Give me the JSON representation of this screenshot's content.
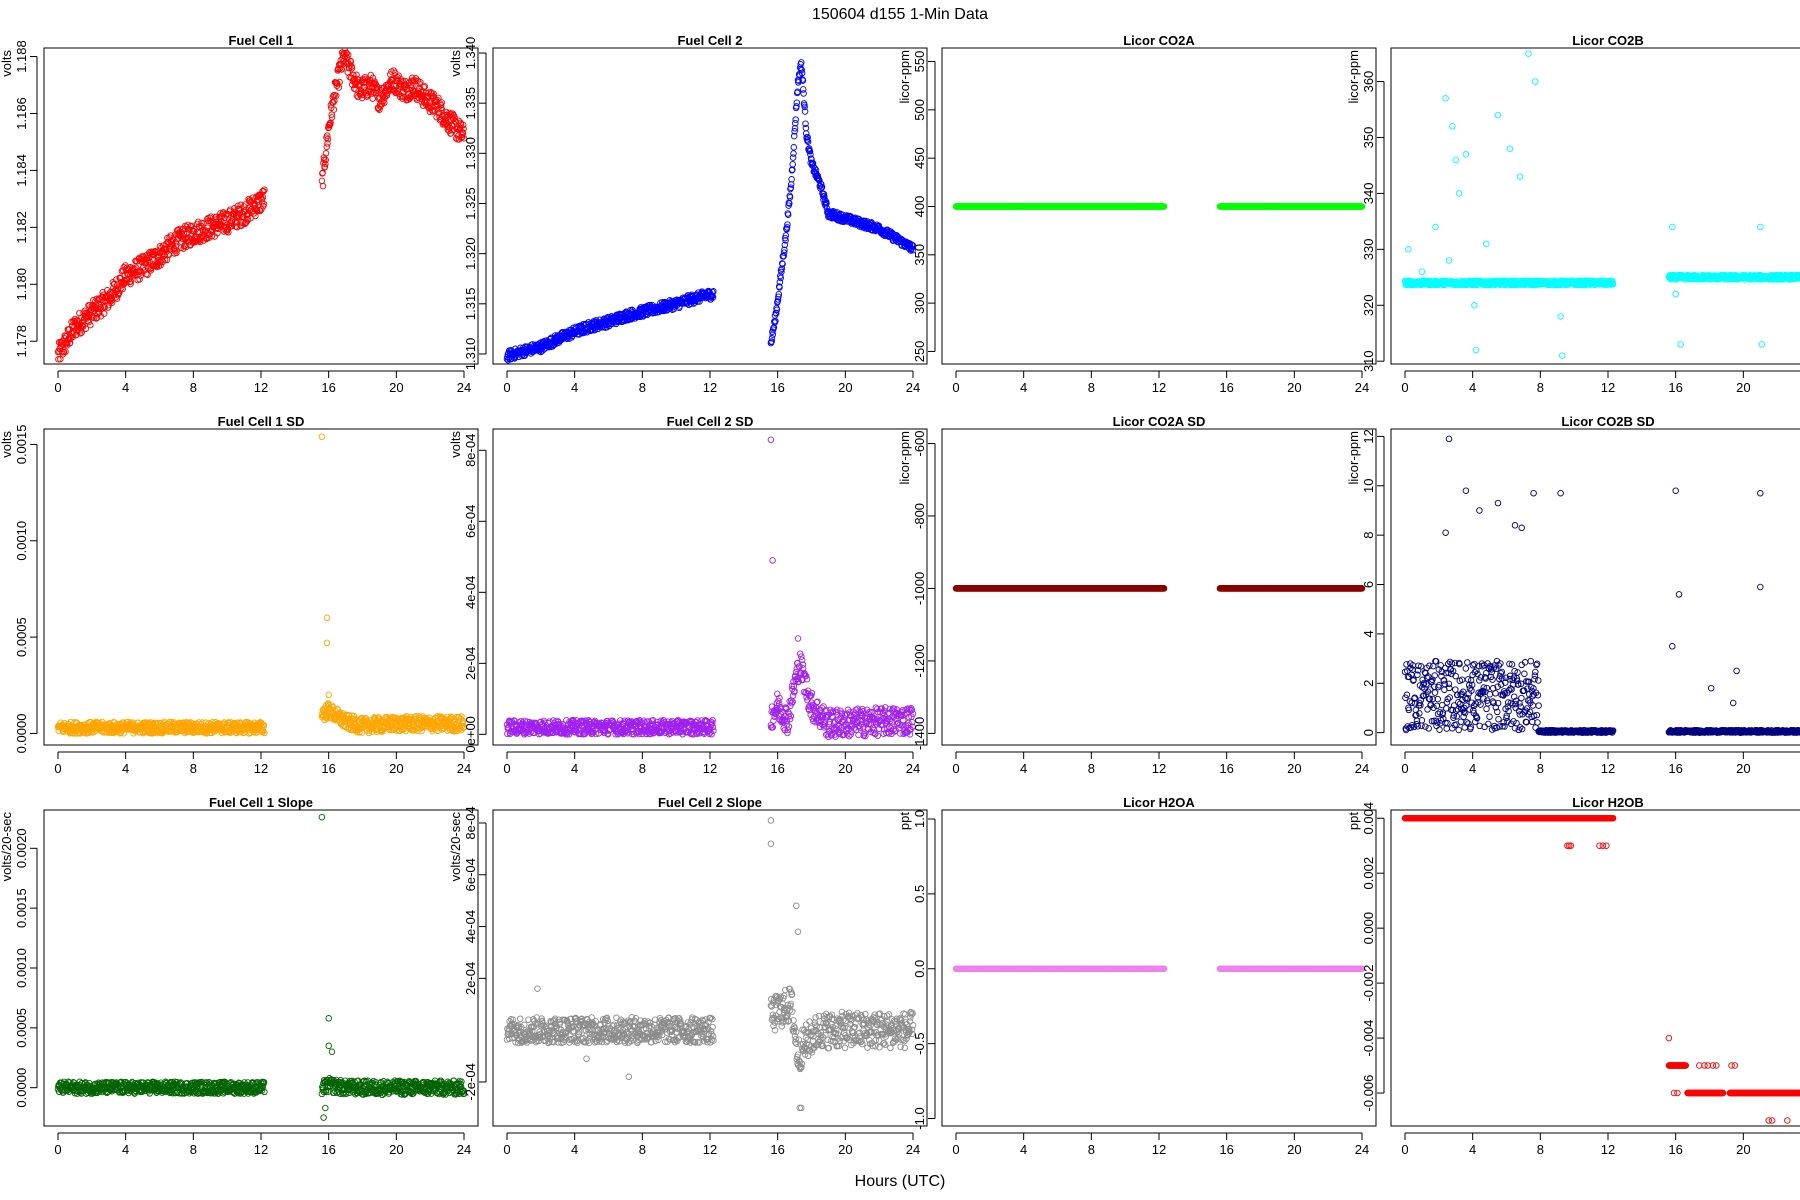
{
  "figure": {
    "title": "150604   d155   1-Min Data",
    "xlabel": "Hours (UTC)"
  },
  "chart_data": [
    {
      "type": "scatter",
      "title": "Fuel Cell 1",
      "ylabel": "volts",
      "color": "#ff0000",
      "xlim": [
        0,
        24
      ],
      "ylim": [
        1.1772,
        1.1883
      ],
      "yticks": [
        1.178,
        1.18,
        1.182,
        1.184,
        1.186,
        1.188
      ],
      "ytick_labels": [
        "1.178",
        "1.180",
        "1.182",
        "1.184",
        "1.186",
        "1.188"
      ],
      "series": [
        {
          "x": [
            0,
            1,
            2,
            3,
            4,
            5,
            6,
            7,
            8,
            9,
            10,
            11,
            12.2
          ],
          "y": [
            1.1775,
            1.1785,
            1.179,
            1.1795,
            1.1803,
            1.1806,
            1.181,
            1.1815,
            1.1818,
            1.182,
            1.1822,
            1.1825,
            1.183
          ],
          "spread": 0.0004
        },
        {
          "x": [
            15.6,
            15.8,
            16,
            16.3,
            16.6,
            16.9,
            17.3,
            17.8,
            18.5,
            19,
            19.8,
            20.5,
            21,
            21.8,
            22.5,
            23,
            23.5,
            24
          ],
          "y": [
            1.1835,
            1.1845,
            1.1855,
            1.1865,
            1.1873,
            1.188,
            1.1875,
            1.1868,
            1.187,
            1.1865,
            1.1872,
            1.1868,
            1.187,
            1.1865,
            1.1862,
            1.1858,
            1.1855,
            1.1852
          ],
          "spread": 0.0004
        }
      ]
    },
    {
      "type": "scatter",
      "title": "Fuel Cell 2",
      "ylabel": "volts",
      "color": "#0000ff",
      "xlim": [
        0,
        24
      ],
      "ylim": [
        1.309,
        1.3405
      ],
      "yticks": [
        1.31,
        1.315,
        1.32,
        1.325,
        1.33,
        1.335,
        1.34
      ],
      "ytick_labels": [
        "1.310",
        "1.315",
        "1.320",
        "1.325",
        "1.330",
        "1.335",
        "1.340"
      ],
      "series": [
        {
          "x": [
            0,
            1,
            2,
            3,
            4,
            5,
            6,
            7,
            8,
            9,
            10,
            11,
            12.2
          ],
          "y": [
            1.3098,
            1.3103,
            1.3107,
            1.3115,
            1.3122,
            1.3128,
            1.3132,
            1.3138,
            1.3142,
            1.3146,
            1.315,
            1.3155,
            1.316
          ],
          "spread": 0.0005
        },
        {
          "x": [
            15.6,
            15.9,
            16.2,
            16.5,
            16.8,
            17,
            17.2,
            17.4,
            17.7,
            18,
            18.5,
            19,
            20,
            21,
            22,
            23,
            24
          ],
          "y": [
            1.311,
            1.314,
            1.318,
            1.322,
            1.327,
            1.332,
            1.337,
            1.339,
            1.332,
            1.329,
            1.327,
            1.324,
            1.3235,
            1.323,
            1.3225,
            1.3215,
            1.3205
          ],
          "spread": 0.0004
        }
      ]
    },
    {
      "type": "scatter",
      "title": "Licor CO2A",
      "ylabel": "licor-ppm",
      "color": "#00ff00",
      "xlim": [
        0,
        24
      ],
      "ylim": [
        237,
        564
      ],
      "yticks": [
        250,
        300,
        350,
        400,
        450,
        500,
        550
      ],
      "ytick_labels": [
        "250",
        "300",
        "350",
        "400",
        "450",
        "500",
        "550"
      ],
      "series": [
        {
          "x": [
            0,
            12.3
          ],
          "y": [
            400,
            400
          ],
          "spread": 0
        },
        {
          "x": [
            15.6,
            24
          ],
          "y": [
            400,
            400
          ],
          "spread": 0
        }
      ]
    },
    {
      "type": "scatter",
      "title": "Licor CO2B",
      "ylabel": "licor-ppm",
      "color": "#00ffff",
      "xlim": [
        0,
        24
      ],
      "ylim": [
        309.5,
        366
      ],
      "yticks": [
        310,
        320,
        330,
        340,
        350,
        360
      ],
      "ytick_labels": [
        "310",
        "320",
        "330",
        "340",
        "350",
        "360"
      ],
      "series": [
        {
          "x": [
            0,
            8,
            12.3
          ],
          "y": [
            324,
            324,
            324
          ],
          "spread": 0.4
        },
        {
          "x": [
            15.6,
            24
          ],
          "y": [
            325,
            325
          ],
          "spread": 0.4
        }
      ],
      "scatter_points": {
        "x": [
          0.2,
          1,
          1.8,
          2.4,
          2.8,
          3.2,
          3.6,
          4.2,
          4.8,
          5.5,
          6.2,
          6.8,
          7.3,
          7.7,
          9.2,
          9.3,
          15.8,
          16,
          16.3,
          21,
          21.1,
          2.6,
          3,
          4.1
        ],
        "y": [
          330,
          326,
          334,
          357,
          352,
          340,
          347,
          312,
          331,
          354,
          348,
          343,
          365,
          360,
          318,
          311,
          334,
          322,
          313,
          334,
          313,
          328,
          346,
          320
        ],
        "spread": 0
      }
    },
    {
      "type": "scatter",
      "title": "Fuel Cell 1 SD",
      "ylabel": "volts",
      "color": "#ffa500",
      "xlim": [
        0,
        24
      ],
      "ylim": [
        -6e-05,
        0.00158
      ],
      "yticks": [
        0,
        0.0005,
        0.001,
        0.0015
      ],
      "ytick_labels": [
        "0.0000",
        "0.0005",
        "0.0010",
        "0.0015"
      ],
      "series": [
        {
          "x": [
            0,
            12.2
          ],
          "y": [
            3e-05,
            3e-05
          ],
          "spread": 3e-05
        },
        {
          "x": [
            15.6,
            16,
            17,
            18,
            20,
            24
          ],
          "y": [
            0.0001,
            0.00012,
            6e-05,
            4e-05,
            5e-05,
            5e-05
          ],
          "spread": 4e-05
        }
      ],
      "scatter_points": {
        "x": [
          15.6,
          15.9,
          15.9,
          16
        ],
        "y": [
          0.00154,
          0.0006,
          0.00047,
          0.0002
        ],
        "spread": 0
      }
    },
    {
      "type": "scatter",
      "title": "Fuel Cell 2 SD",
      "ylabel": "volts",
      "color": "#a020f0",
      "xlim": [
        0,
        24
      ],
      "ylim": [
        -3e-05,
        0.00086
      ],
      "yticks": [
        0,
        0.0002,
        0.0004,
        0.0006,
        0.0008
      ],
      "ytick_labels": [
        "0e+00",
        "2e-04",
        "4e-04",
        "6e-04",
        "8e-04"
      ],
      "series": [
        {
          "x": [
            0,
            12.2
          ],
          "y": [
            2e-05,
            2e-05
          ],
          "spread": 2e-05
        },
        {
          "x": [
            15.6,
            16,
            16.6,
            17,
            17.3,
            18,
            19,
            24
          ],
          "y": [
            5e-05,
            8e-05,
            4e-05,
            0.00014,
            0.0002,
            8e-05,
            3e-05,
            4e-05
          ],
          "spread": 4e-05
        }
      ],
      "scatter_points": {
        "x": [
          15.6,
          15.7,
          17.2
        ],
        "y": [
          0.00083,
          0.00049,
          0.00027
        ],
        "spread": 0
      }
    },
    {
      "type": "scatter",
      "title": "Licor CO2A SD",
      "ylabel": "licor-ppm",
      "color": "#8b0000",
      "xlim": [
        0,
        24
      ],
      "ylim": [
        -1432,
        -560
      ],
      "yticks": [
        -1400,
        -1200,
        -1000,
        -800,
        -600
      ],
      "ytick_labels": [
        "-1400",
        "-1200",
        "-1000",
        "-800",
        "-600"
      ],
      "series": [
        {
          "x": [
            0,
            12.3
          ],
          "y": [
            -1000,
            -1000
          ],
          "spread": 0
        },
        {
          "x": [
            15.6,
            24
          ],
          "y": [
            -1000,
            -1000
          ],
          "spread": 0
        }
      ]
    },
    {
      "type": "scatter",
      "title": "Licor CO2B SD",
      "ylabel": "licor-ppm",
      "color": "#000080",
      "xlim": [
        0,
        24
      ],
      "ylim": [
        -0.5,
        12.3
      ],
      "yticks": [
        0,
        2,
        4,
        6,
        8,
        10,
        12
      ],
      "ytick_labels": [
        "0",
        "2",
        "4",
        "6",
        "8",
        "10",
        "12"
      ],
      "series": [
        {
          "x": [
            0,
            7.9
          ],
          "y": [
            1.5,
            1.5
          ],
          "spread": 1.4
        },
        {
          "x": [
            7.9,
            12.3
          ],
          "y": [
            0.05,
            0.05
          ],
          "spread": 0.05
        },
        {
          "x": [
            15.6,
            24
          ],
          "y": [
            0.05,
            0.05
          ],
          "spread": 0.05
        }
      ],
      "scatter_points": {
        "x": [
          2.6,
          2.4,
          3.6,
          4.4,
          5.5,
          6.5,
          6.9,
          7.6,
          9.2,
          16,
          16.2,
          15.8,
          21,
          21,
          19.6,
          19.4,
          18.1
        ],
        "y": [
          11.9,
          8.1,
          9.8,
          9,
          9.3,
          8.4,
          8.3,
          9.7,
          9.7,
          9.8,
          5.6,
          3.5,
          9.7,
          5.9,
          2.5,
          1.2,
          1.8
        ],
        "spread": 0
      }
    },
    {
      "type": "scatter",
      "title": "Fuel Cell 1 Slope",
      "ylabel": "volts/20-sec",
      "color": "#006400",
      "xlim": [
        0,
        24
      ],
      "ylim": [
        -0.00032,
        0.00232
      ],
      "yticks": [
        0,
        0.0005,
        0.001,
        0.0015,
        0.002
      ],
      "ytick_labels": [
        "0.0000",
        "0.0005",
        "0.0010",
        "0.0015",
        "0.0020"
      ],
      "series": [
        {
          "x": [
            0,
            12.2
          ],
          "y": [
            0,
            0
          ],
          "spread": 5e-05
        },
        {
          "x": [
            15.6,
            16,
            17,
            24
          ],
          "y": [
            0,
            2e-05,
            0,
            0
          ],
          "spread": 6e-05
        }
      ],
      "scatter_points": {
        "x": [
          15.6,
          16,
          16,
          15.7,
          15.8,
          16.2
        ],
        "y": [
          0.00226,
          0.00058,
          0.00035,
          -0.00025,
          -0.00017,
          0.0003
        ],
        "spread": 0
      }
    },
    {
      "type": "scatter",
      "title": "Fuel Cell 2 Slope",
      "ylabel": "volts/20-sec",
      "color": "#8c8c8c",
      "xlim": [
        0,
        24
      ],
      "ylim": [
        -0.00037,
        0.00085
      ],
      "yticks": [
        -0.0002,
        0.0002,
        0.0004,
        0.0006,
        0.0008
      ],
      "ytick_labels": [
        "-2e-04",
        "2e-04",
        "4e-04",
        "6e-04",
        "8e-04"
      ],
      "series": [
        {
          "x": [
            0,
            12.2
          ],
          "y": [
            0,
            0
          ],
          "spread": 5e-05
        },
        {
          "x": [
            15.6,
            16.2,
            16.8,
            17.2,
            17.6,
            18.5,
            24
          ],
          "y": [
            5e-05,
            8e-05,
            0.0001,
            -0.0001,
            -5e-05,
            0,
            0
          ],
          "spread": 7e-05
        }
      ],
      "scatter_points": {
        "x": [
          15.6,
          15.6,
          17.1,
          17.2,
          17.3,
          17.4,
          7.2,
          1.8,
          4.7
        ],
        "y": [
          0.00081,
          0.00072,
          0.00048,
          0.00038,
          -0.0003,
          -0.0003,
          -0.00018,
          0.00016,
          -0.00011
        ],
        "spread": 0
      }
    },
    {
      "type": "scatter",
      "title": "Licor H2OA",
      "ylabel": "ppt",
      "color": "#ee82ee",
      "xlim": [
        0,
        24
      ],
      "ylim": [
        -1.05,
        1.06
      ],
      "yticks": [
        -1,
        -0.5,
        0,
        0.5,
        1
      ],
      "ytick_labels": [
        "-1.0",
        "-0.5",
        "0.0",
        "0.5",
        "1.0"
      ],
      "series": [
        {
          "x": [
            0,
            12.3
          ],
          "y": [
            0,
            0
          ],
          "spread": 0
        },
        {
          "x": [
            15.6,
            24
          ],
          "y": [
            0,
            0
          ],
          "spread": 0
        }
      ]
    },
    {
      "type": "scatter",
      "title": "Licor H2OB",
      "ylabel": "ppt",
      "color": "#ff0000",
      "xlim": [
        0,
        24
      ],
      "ylim": [
        -0.0072,
        0.0043
      ],
      "yticks": [
        -0.006,
        -0.004,
        -0.002,
        0,
        0.002,
        0.004
      ],
      "ytick_labels": [
        "-0.006",
        "-0.004",
        "-0.002",
        "0.000",
        "0.002",
        "0.004"
      ],
      "series": [
        {
          "x": [
            0,
            12.3
          ],
          "y": [
            0.004,
            0.004
          ],
          "spread": 0
        },
        {
          "x": [
            15.6,
            16.6
          ],
          "y": [
            -0.005,
            -0.005
          ],
          "spread": 0
        },
        {
          "x": [
            16.7,
            18.8
          ],
          "y": [
            -0.006,
            -0.006
          ],
          "spread": 0
        },
        {
          "x": [
            19.2,
            24
          ],
          "y": [
            -0.006,
            -0.006
          ],
          "spread": 0
        }
      ],
      "scatter_points": {
        "x": [
          9.6,
          9.7,
          9.8,
          11.5,
          11.7,
          11.9,
          15.6,
          15.9,
          16.1,
          17.4,
          17.7,
          17.9,
          19.3,
          19.5,
          21.5,
          21.7,
          22.6,
          16.4,
          18.2,
          18.4
        ],
        "y": [
          0.003,
          0.003,
          0.003,
          0.003,
          0.003,
          0.003,
          -0.004,
          -0.006,
          -0.006,
          -0.005,
          -0.005,
          -0.005,
          -0.005,
          -0.005,
          -0.007,
          -0.007,
          -0.007,
          -0.005,
          -0.005,
          -0.005
        ],
        "spread": 0
      }
    }
  ]
}
